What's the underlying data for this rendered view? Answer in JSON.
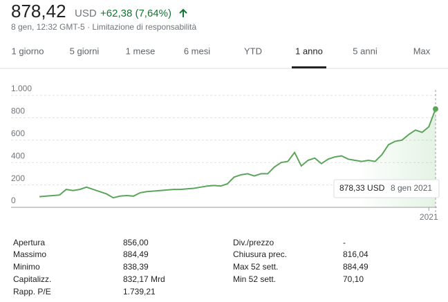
{
  "header": {
    "price": "878,42",
    "currency": "USD",
    "change": "+62,38 (7,64%)",
    "meta": "8 gen, 12:32 GMT-5 · Limitazione di responsabilità"
  },
  "tabs": [
    "1 giorno",
    "5 giorni",
    "1 mese",
    "6 mesi",
    "YTD",
    "1 anno",
    "5 anni",
    "Max"
  ],
  "chart_data": {
    "type": "line",
    "categories": [
      null,
      null,
      null,
      null,
      null,
      null,
      null,
      null,
      null,
      null,
      null,
      null,
      null,
      null,
      null,
      null,
      null,
      null,
      null,
      null,
      null,
      null,
      null,
      null,
      null,
      null,
      null,
      null,
      null,
      null,
      null,
      null,
      null,
      null,
      null,
      null,
      null,
      null,
      null,
      null,
      null,
      null,
      null,
      null,
      null,
      null,
      null,
      null,
      null,
      null,
      null,
      null,
      null,
      null,
      null,
      null,
      null,
      null,
      "2021",
      null
    ],
    "series": [
      {
        "color": "#5aa55a",
        "values": [
          95,
          100,
          105,
          110,
          160,
          150,
          160,
          180,
          160,
          140,
          120,
          85,
          100,
          105,
          100,
          130,
          140,
          145,
          150,
          155,
          160,
          160,
          165,
          170,
          180,
          190,
          195,
          190,
          210,
          270,
          290,
          300,
          280,
          300,
          300,
          360,
          400,
          410,
          490,
          370,
          420,
          440,
          390,
          430,
          450,
          460,
          430,
          420,
          410,
          420,
          410,
          470,
          560,
          590,
          600,
          650,
          690,
          670,
          720,
          878.33
        ]
      }
    ],
    "ylim": [
      0,
      1000
    ],
    "yticks": [
      0,
      200,
      400,
      600,
      800,
      {
        "value": 1000,
        "label": "1.000"
      }
    ],
    "grid": true,
    "annotations": [
      "878,33 USD",
      "8 gen 2021"
    ]
  },
  "stats": {
    "left": [
      [
        "Apertura",
        "856,00"
      ],
      [
        "Massimo",
        "884,49"
      ],
      [
        "Minimo",
        "838,39"
      ],
      [
        "Capitalizz.",
        "832,17 Mrd"
      ],
      [
        "Rapp. P/E",
        "1.739,21"
      ]
    ],
    "right": [
      [
        "Div./prezzo",
        "-"
      ],
      [
        "Chiusura prec.",
        "816,04"
      ],
      [
        "Max 52 sett.",
        "884,49"
      ],
      [
        "Min 52 sett.",
        "70,10"
      ]
    ]
  }
}
